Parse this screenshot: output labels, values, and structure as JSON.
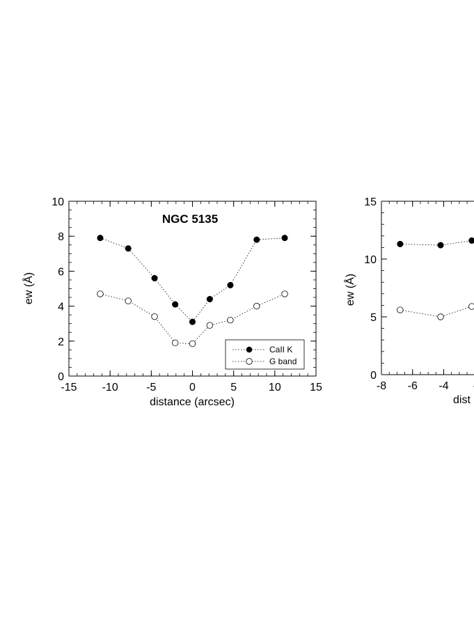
{
  "chart_data": [
    {
      "type": "scatter",
      "title": "NGC  5135",
      "xlabel": "distance (arcsec)",
      "ylabel": "ew (Å)",
      "xlim": [
        -15,
        15
      ],
      "ylim": [
        0,
        10
      ],
      "xticks": [
        "-15",
        "-10",
        "-5",
        "0",
        "5",
        "10",
        "15"
      ],
      "yticks": [
        "0",
        "2",
        "4",
        "6",
        "8",
        "10"
      ],
      "legend": {
        "position": "bottom-right"
      },
      "series": [
        {
          "name": "CaII K",
          "marker": "filled-circle",
          "line": "dotted",
          "x": [
            -11.2,
            -7.8,
            -4.6,
            -2.1,
            0,
            2.1,
            4.6,
            7.8,
            11.2
          ],
          "y": [
            7.9,
            7.3,
            5.6,
            4.1,
            3.1,
            4.4,
            5.2,
            7.8,
            7.9
          ]
        },
        {
          "name": "G band",
          "marker": "open-circle",
          "line": "dotted",
          "x": [
            -11.2,
            -7.8,
            -4.6,
            -2.1,
            0,
            2.1,
            4.6,
            7.8,
            11.2
          ],
          "y": [
            4.7,
            4.3,
            3.4,
            1.9,
            1.85,
            2.9,
            3.2,
            4.0,
            4.7
          ]
        }
      ]
    },
    {
      "type": "scatter",
      "xlabel": "dist",
      "ylabel": "ew (Å)",
      "xlim": [
        -8,
        0
      ],
      "ylim": [
        0,
        15
      ],
      "xticks": [
        "-8",
        "-6",
        "-4",
        "-"
      ],
      "yticks": [
        "0",
        "5",
        "10",
        "15"
      ],
      "series": [
        {
          "marker": "filled-circle",
          "line": "dotted",
          "x": [
            -6.8,
            -4.2,
            -2.2
          ],
          "y": [
            11.3,
            11.2,
            11.6
          ]
        },
        {
          "marker": "open-circle",
          "line": "dotted",
          "x": [
            -6.8,
            -4.2,
            -2.2
          ],
          "y": [
            5.6,
            5.0,
            5.9
          ]
        }
      ]
    }
  ]
}
